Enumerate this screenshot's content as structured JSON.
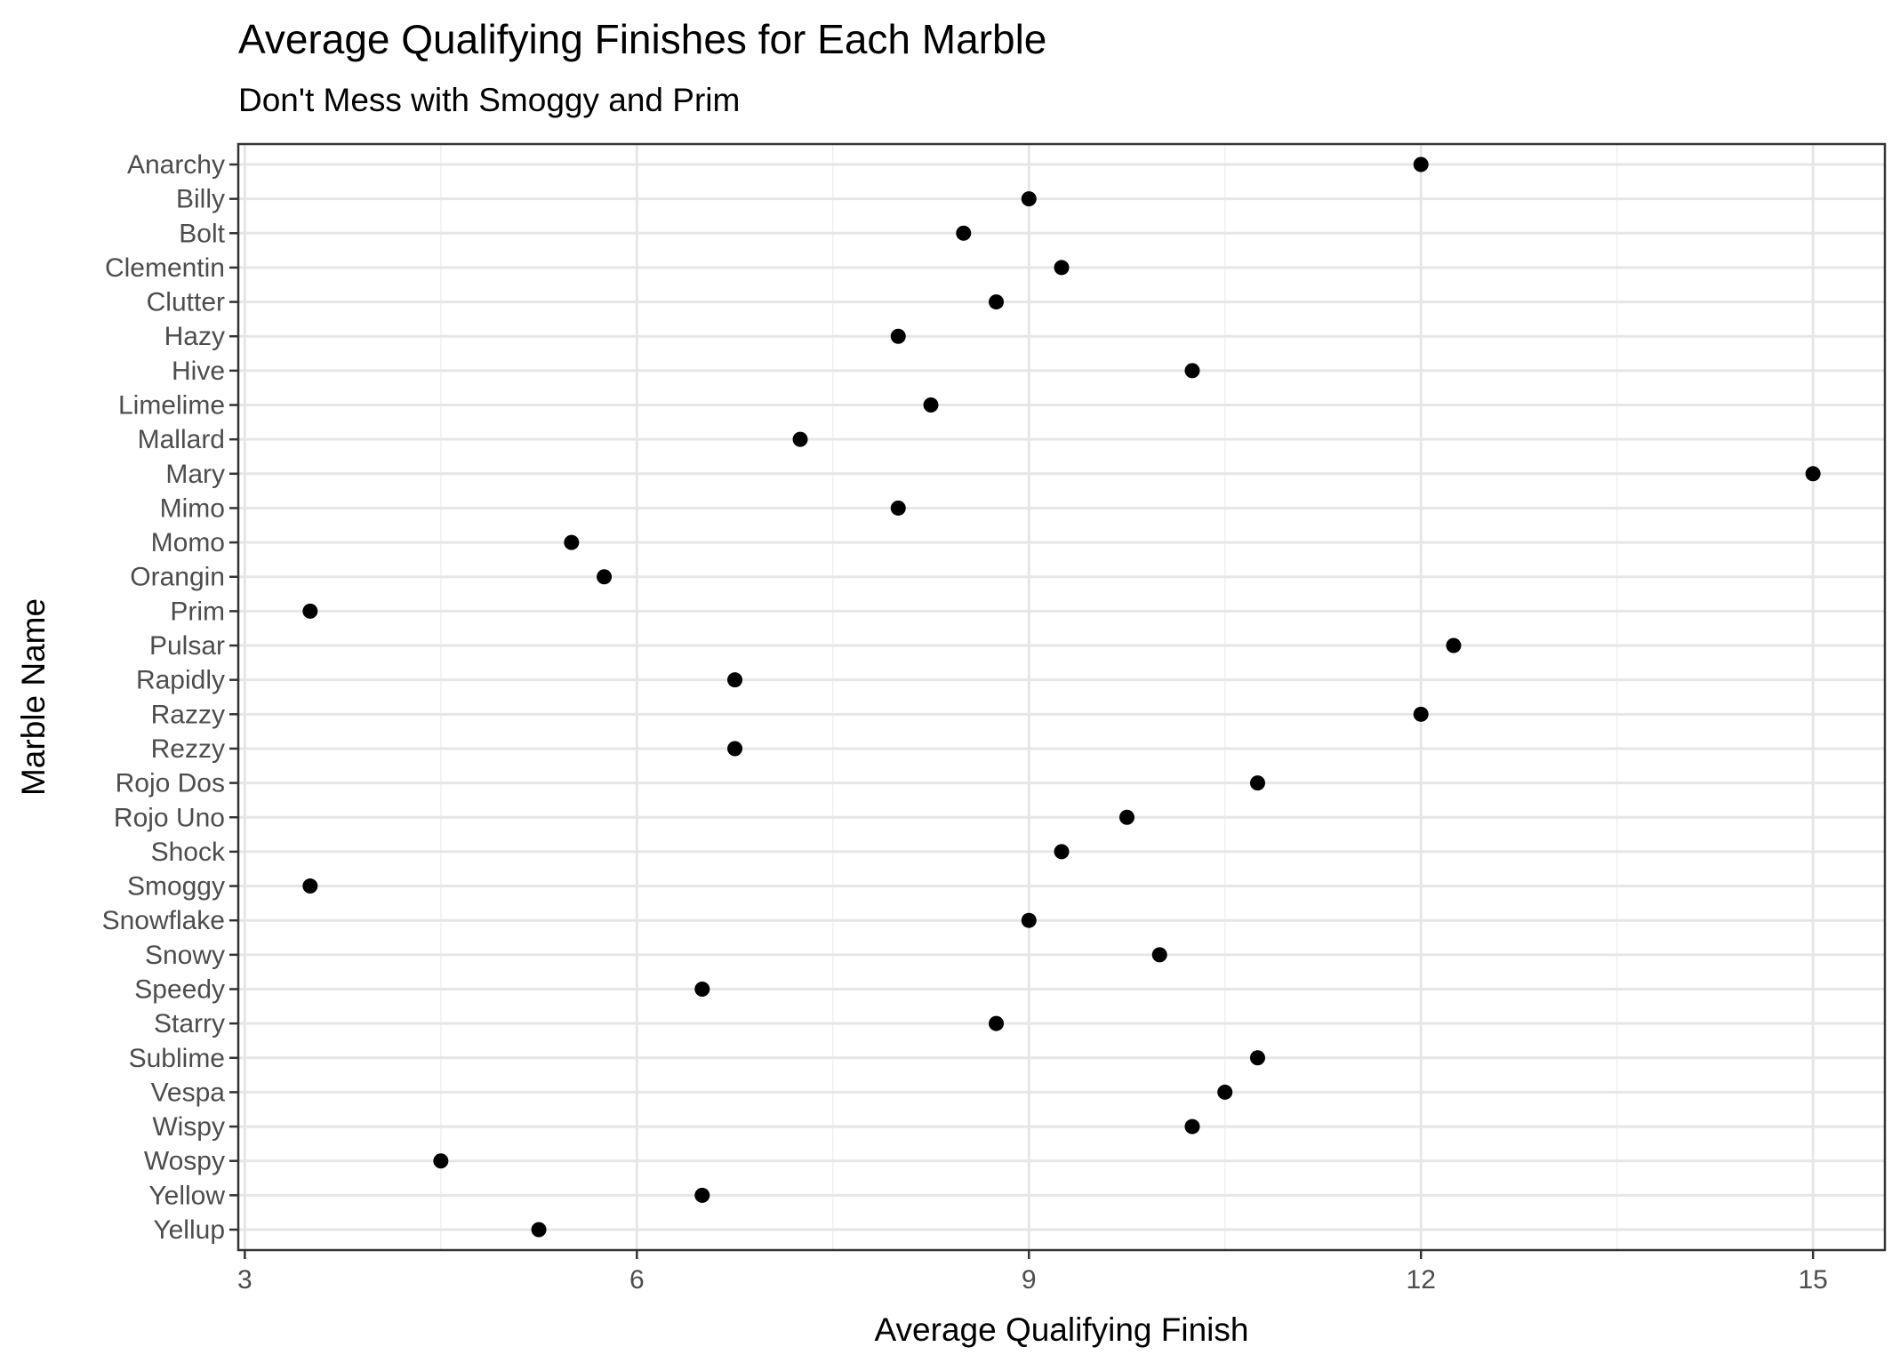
{
  "chart_data": {
    "type": "scatter",
    "title": "Average Qualifying Finishes for Each Marble",
    "subtitle": "Don't Mess with Smoggy and Prim",
    "xlabel": "Average Qualifying Finish",
    "ylabel": "Marble Name",
    "xlim": [
      2.95,
      15.55
    ],
    "x_ticks": [
      3,
      6,
      9,
      12,
      15
    ],
    "x_tick_labels": [
      "3",
      "6",
      "9",
      "12",
      "15"
    ],
    "x_minor_ticks": [
      4.5,
      7.5,
      10.5,
      13.5
    ],
    "grid": true,
    "legend": "none",
    "point_color": "#000000",
    "categories": [
      "Anarchy",
      "Billy",
      "Bolt",
      "Clementin",
      "Clutter",
      "Hazy",
      "Hive",
      "Limelime",
      "Mallard",
      "Mary",
      "Mimo",
      "Momo",
      "Orangin",
      "Prim",
      "Pulsar",
      "Rapidly",
      "Razzy",
      "Rezzy",
      "Rojo Dos",
      "Rojo Uno",
      "Shock",
      "Smoggy",
      "Snowflake",
      "Snowy",
      "Speedy",
      "Starry",
      "Sublime",
      "Vespa",
      "Wispy",
      "Wospy",
      "Yellow",
      "Yellup"
    ],
    "values": [
      12,
      9,
      8.5,
      9.25,
      8.75,
      8,
      10.25,
      8.25,
      7.25,
      15,
      8,
      5.5,
      5.75,
      3.5,
      12.25,
      6.75,
      12,
      6.75,
      10.75,
      9.75,
      9.25,
      3.5,
      9,
      10,
      6.5,
      8.75,
      10.75,
      10.5,
      10.25,
      4.5,
      6.5,
      5.25
    ]
  }
}
